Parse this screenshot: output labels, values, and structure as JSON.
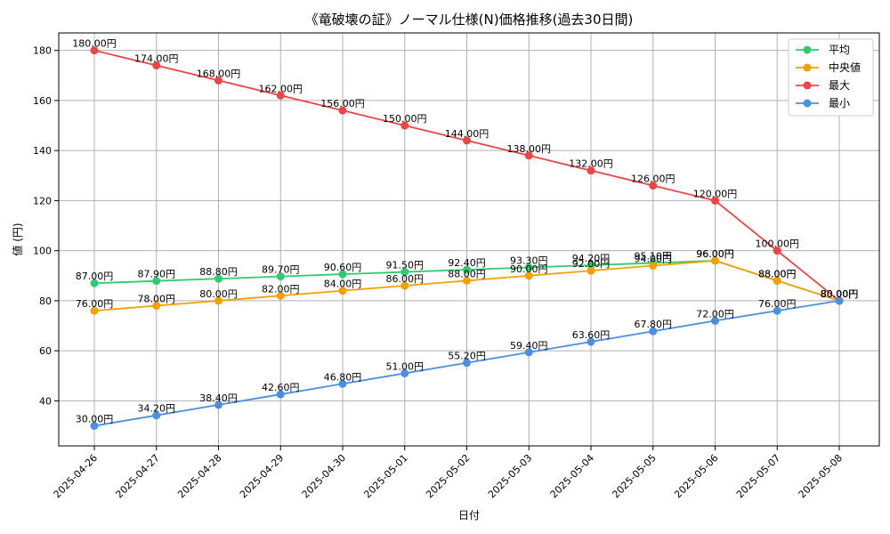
{
  "chart_data": {
    "type": "line",
    "title": "《竜破壊の証》ノーマル仕様(N)価格推移(過去30日間)",
    "xlabel": "日付",
    "ylabel": "値 (円)",
    "categories": [
      "2025-04-26",
      "2025-04-27",
      "2025-04-28",
      "2025-04-29",
      "2025-04-30",
      "2025-05-01",
      "2025-05-02",
      "2025-05-03",
      "2025-05-04",
      "2025-05-05",
      "2025-05-06",
      "2025-05-07",
      "2025-05-08"
    ],
    "ylim": [
      22,
      187
    ],
    "yticks": [
      40,
      60,
      80,
      100,
      120,
      140,
      160,
      180
    ],
    "grid": true,
    "legend_position": "top-right",
    "series": [
      {
        "name": "平均",
        "color": "#2ecc71",
        "values": [
          87.0,
          87.9,
          88.8,
          89.7,
          90.6,
          91.5,
          92.4,
          93.3,
          94.2,
          95.1,
          96.0,
          88.0,
          80.0
        ],
        "labels": [
          "87.00円",
          "87.90円",
          "88.80円",
          "89.70円",
          "90.60円",
          "91.50円",
          "92.40円",
          "93.30円",
          "94.20円",
          "95.10円",
          "96.00円",
          "88.00円",
          "80.00円"
        ]
      },
      {
        "name": "中央値",
        "color": "#f5a000",
        "values": [
          76,
          78,
          80,
          82,
          84,
          86,
          88,
          90,
          92,
          94,
          96,
          88,
          80
        ],
        "labels": [
          "76.00円",
          "78.00円",
          "80.00円",
          "82.00円",
          "84.00円",
          "86.00円",
          "88.00円",
          "90.00円",
          "92.00円",
          "94.00円",
          "96.00円",
          "88.00円",
          "80.00円"
        ]
      },
      {
        "name": "最大",
        "color": "#ef4444",
        "values": [
          180,
          174,
          168,
          162,
          156,
          150,
          144,
          138,
          132,
          126,
          120,
          100,
          80
        ],
        "labels": [
          "180.00円",
          "174.00円",
          "168.00円",
          "162.00円",
          "156.00円",
          "150.00円",
          "144.00円",
          "138.00円",
          "132.00円",
          "126.00円",
          "120.00円",
          "100.00円",
          "80.00円"
        ]
      },
      {
        "name": "最小",
        "color": "#4a90e2",
        "values": [
          30.0,
          34.2,
          38.4,
          42.6,
          46.8,
          51.0,
          55.2,
          59.4,
          63.6,
          67.8,
          72.0,
          76.0,
          80.0
        ],
        "labels": [
          "30.00円",
          "34.20円",
          "38.40円",
          "42.60円",
          "46.80円",
          "51.00円",
          "55.20円",
          "59.40円",
          "63.60円",
          "67.80円",
          "72.00円",
          "76.00円",
          "80.00円"
        ]
      }
    ]
  }
}
